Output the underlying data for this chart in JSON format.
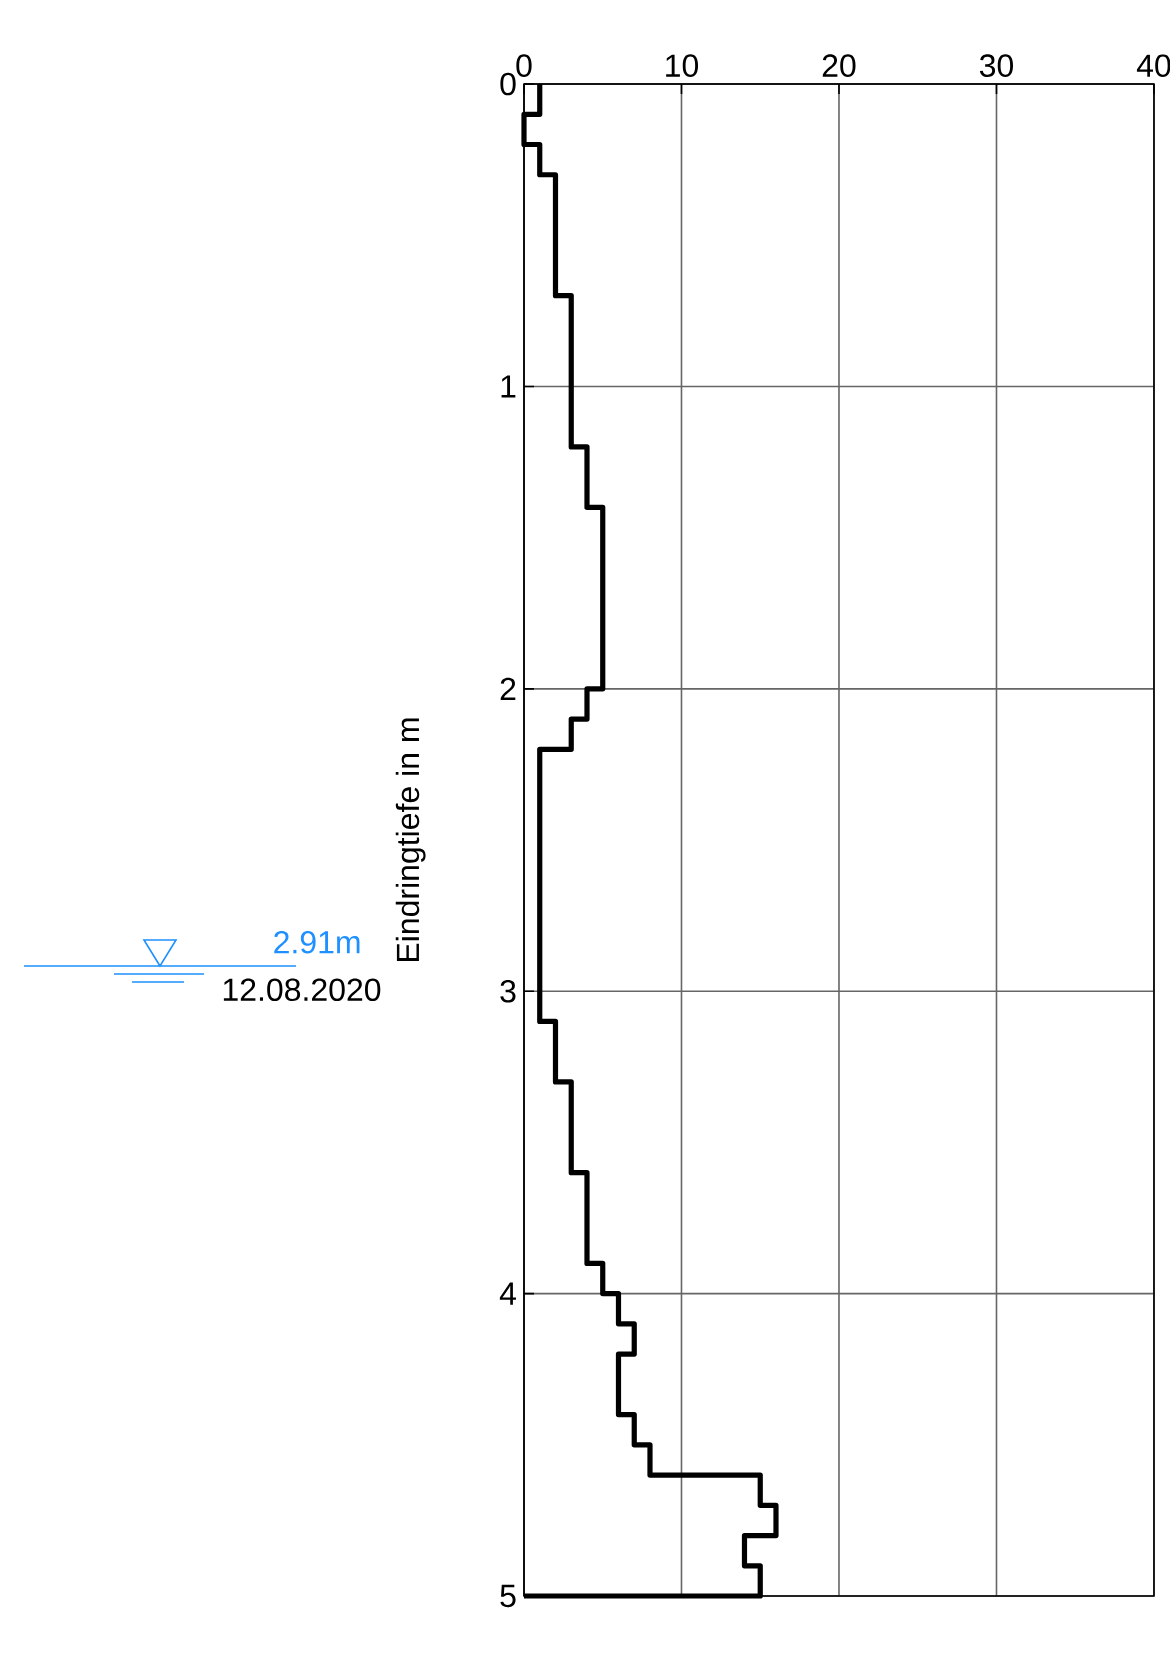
{
  "chart_data": {
    "type": "step",
    "orientation": "horizontal",
    "ylabel": "Eindringtiefe in m",
    "x": [
      0.0,
      0.1,
      0.2,
      0.3,
      0.4,
      0.5,
      0.6,
      0.7,
      0.8,
      0.9,
      1.0,
      1.1,
      1.2,
      1.3,
      1.4,
      1.5,
      1.6,
      1.7,
      1.8,
      1.9,
      2.0,
      2.1,
      2.2,
      2.3,
      2.4,
      2.5,
      2.6,
      2.7,
      2.8,
      2.9,
      3.0,
      3.1,
      3.2,
      3.3,
      3.4,
      3.5,
      3.6,
      3.7,
      3.8,
      3.9,
      4.0,
      4.1,
      4.2,
      4.3,
      4.4,
      4.5,
      4.6,
      4.7,
      4.8,
      4.9,
      5.0
    ],
    "values": [
      1,
      0,
      1,
      2,
      2,
      2,
      2,
      3,
      3,
      3,
      3,
      3,
      4,
      4,
      5,
      5,
      5,
      5,
      5,
      5,
      4,
      3,
      1,
      1,
      1,
      1,
      1,
      1,
      1,
      1,
      1,
      2,
      2,
      3,
      3,
      3,
      4,
      4,
      4,
      5,
      6,
      7,
      6,
      6,
      7,
      8,
      15,
      16,
      14,
      15,
      0
    ],
    "color": "#000000",
    "xlim": [
      0,
      40
    ],
    "xticks": [
      0,
      10,
      20,
      30,
      40
    ],
    "ylim": [
      5,
      0
    ],
    "yticks": [
      0,
      1,
      2,
      3,
      4,
      5
    ],
    "grid": true,
    "annotations": [
      "2.91m",
      "12.08.2020"
    ]
  }
}
